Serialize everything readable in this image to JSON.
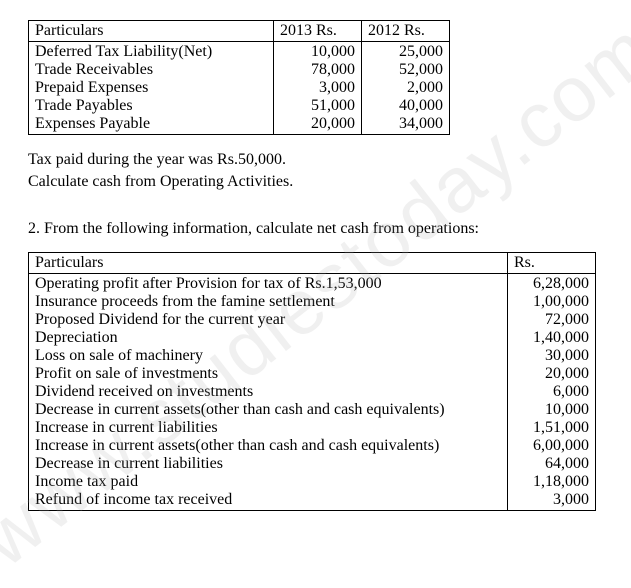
{
  "watermark": "www.studiestoday.com",
  "table1": {
    "headers": [
      "Particulars",
      "2013 Rs.",
      "2012 Rs."
    ],
    "rows": [
      {
        "label": "Deferred Tax Liability(Net)",
        "y2013": "10,000",
        "y2012": "25,000"
      },
      {
        "label": "Trade Receivables",
        "y2013": "78,000",
        "y2012": "52,000"
      },
      {
        "label": "Prepaid Expenses",
        "y2013": "3,000",
        "y2012": "2,000"
      },
      {
        "label": "Trade Payables",
        "y2013": "51,000",
        "y2012": "40,000"
      },
      {
        "label": "Expenses Payable",
        "y2013": "20,000",
        "y2012": "34,000"
      }
    ]
  },
  "para1_line1": "Tax paid during the year was Rs.50,000.",
  "para1_line2": "Calculate cash from Operating Activities.",
  "q2_text": "2. From the following information, calculate net cash from operations:",
  "table2": {
    "headers": [
      "Particulars",
      "Rs."
    ],
    "rows": [
      {
        "label": "Operating profit after Provision for tax of Rs.1,53,000",
        "val": "6,28,000"
      },
      {
        "label": "Insurance proceeds from the famine settlement",
        "val": "1,00,000"
      },
      {
        "label": "Proposed Dividend for the current year",
        "val": "72,000"
      },
      {
        "label": "Depreciation",
        "val": "1,40,000"
      },
      {
        "label": "Loss on sale of machinery",
        "val": "30,000"
      },
      {
        "label": "Profit on sale of investments",
        "val": "20,000"
      },
      {
        "label": "Dividend received on investments",
        "val": "6,000"
      },
      {
        "label": "Decrease in current assets(other than cash and cash equivalents)",
        "val": "10,000"
      },
      {
        "label": "Increase in current liabilities",
        "val": "1,51,000"
      },
      {
        "label": "Increase in current assets(other than cash and cash equivalents)",
        "val": "6,00,000"
      },
      {
        "label": "Decrease in current liabilities",
        "val": "64,000"
      },
      {
        "label": "Income tax paid",
        "val": "1,18,000"
      },
      {
        "label": "Refund of income tax received",
        "val": "3,000"
      }
    ]
  }
}
